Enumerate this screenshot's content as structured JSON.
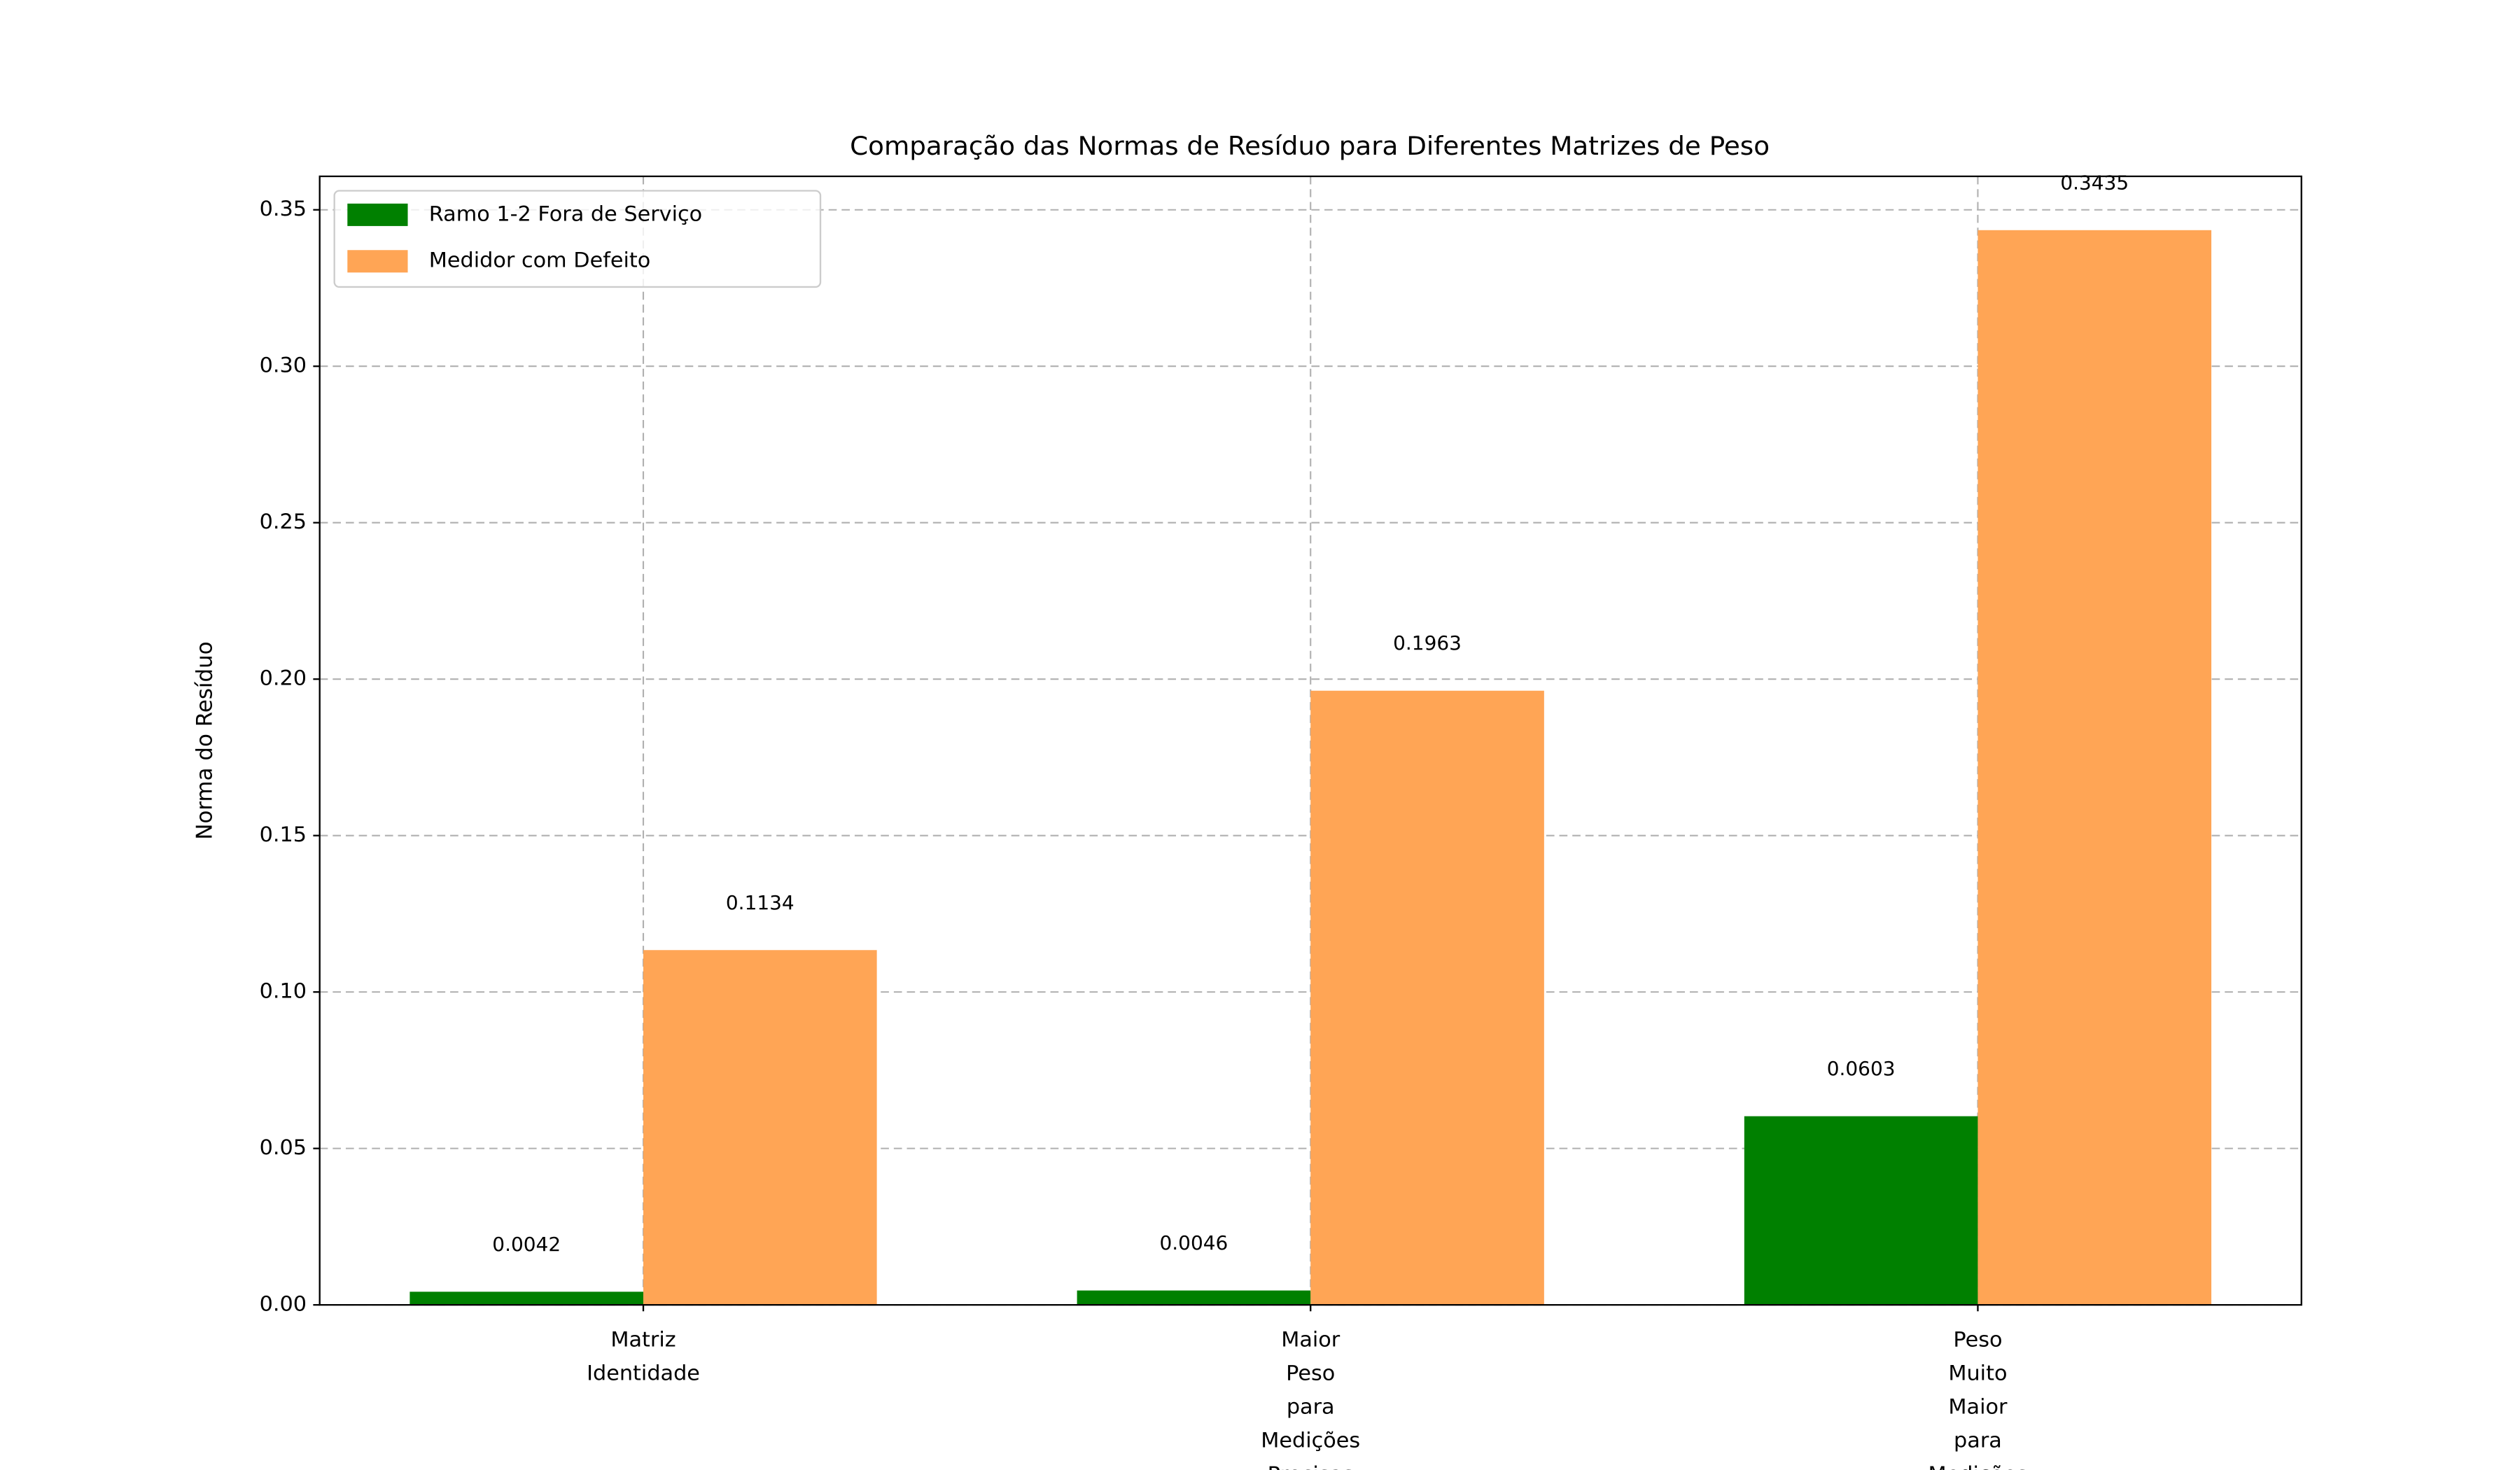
{
  "chart_data": {
    "type": "bar",
    "title": "Comparação das Normas de Resíduo para Diferentes Matrizes de Peso",
    "y_label": "Norma do Resíduo",
    "categories": [
      "Matriz\nIdentidade",
      "Maior\nPeso\npara\nMedições\nPrecisas",
      "Peso\nMuito\nMaior\npara\nMedições\nPrecisas"
    ],
    "series": [
      {
        "name": "Ramo 1-2 Fora de Serviço",
        "color": "#008000",
        "values": [
          0.0042,
          0.0046,
          0.0603
        ]
      },
      {
        "name": "Medidor com Defeito",
        "color": "#ffa555",
        "values": [
          0.1134,
          0.1963,
          0.3435
        ]
      }
    ],
    "ylim": [
      0,
      0.3607
    ],
    "yticks": [
      {
        "value": 0,
        "label": "0.00"
      },
      {
        "value": 0.05,
        "label": "0.05"
      },
      {
        "value": 0.1,
        "label": "0.10"
      },
      {
        "value": 0.15,
        "label": "0.15"
      },
      {
        "value": 0.2,
        "label": "0.20"
      },
      {
        "value": 0.25,
        "label": "0.25"
      },
      {
        "value": 0.3,
        "label": "0.30"
      },
      {
        "value": 0.35,
        "label": "0.35"
      }
    ],
    "grid": true,
    "legend": "upper left"
  }
}
